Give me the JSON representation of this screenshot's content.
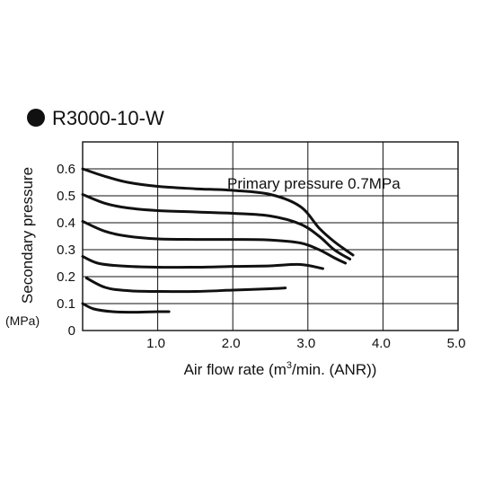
{
  "chart_data": {
    "type": "line",
    "title": "R3000-10-W",
    "xlabel_main": "Air flow rate (m",
    "xlabel_sup": "3",
    "xlabel_tail": "/min. (ANR))",
    "ylabel": "Secondary pressure",
    "yunit": "(MPa)",
    "annotation": "Primary pressure 0.7MPa",
    "xlim": [
      0,
      5.0
    ],
    "ylim": [
      0,
      0.7
    ],
    "x_ticks": [
      "1.0",
      "2.0",
      "3.0",
      "4.0",
      "5.0"
    ],
    "y_ticks": [
      "0",
      "0.1",
      "0.2",
      "0.3",
      "0.4",
      "0.5",
      "0.6"
    ],
    "grid": true,
    "series": [
      {
        "x": [
          0,
          0.3,
          0.6,
          1.0,
          1.5,
          2.0,
          2.5,
          2.9,
          3.15,
          3.35,
          3.6
        ],
        "y": [
          0.6,
          0.572,
          0.55,
          0.535,
          0.526,
          0.52,
          0.505,
          0.46,
          0.38,
          0.33,
          0.28
        ]
      },
      {
        "x": [
          0,
          0.3,
          0.6,
          1.0,
          1.5,
          2.0,
          2.5,
          2.9,
          3.15,
          3.35,
          3.56
        ],
        "y": [
          0.505,
          0.472,
          0.455,
          0.445,
          0.44,
          0.435,
          0.425,
          0.395,
          0.35,
          0.3,
          0.265
        ]
      },
      {
        "x": [
          0,
          0.3,
          0.6,
          1.0,
          1.5,
          2.0,
          2.5,
          2.9,
          3.15,
          3.35,
          3.5
        ],
        "y": [
          0.405,
          0.368,
          0.35,
          0.34,
          0.338,
          0.338,
          0.336,
          0.325,
          0.3,
          0.27,
          0.25
        ]
      },
      {
        "x": [
          0,
          0.2,
          0.5,
          1.0,
          1.5,
          2.0,
          2.5,
          2.9,
          3.2
        ],
        "y": [
          0.275,
          0.25,
          0.24,
          0.235,
          0.235,
          0.238,
          0.24,
          0.245,
          0.23
        ]
      },
      {
        "x": [
          0.05,
          0.3,
          0.6,
          1.0,
          1.5,
          2.0,
          2.5,
          2.7
        ],
        "y": [
          0.195,
          0.16,
          0.148,
          0.145,
          0.145,
          0.15,
          0.155,
          0.158
        ]
      },
      {
        "x": [
          0,
          0.15,
          0.4,
          0.7,
          1.0,
          1.15
        ],
        "y": [
          0.1,
          0.08,
          0.07,
          0.068,
          0.07,
          0.07
        ]
      }
    ]
  }
}
